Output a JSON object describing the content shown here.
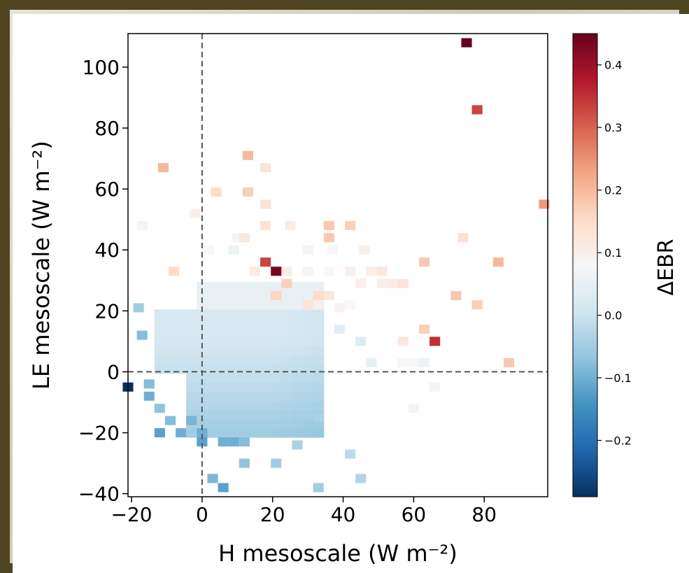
{
  "chart_data": {
    "type": "heatmap",
    "title": "",
    "xlabel": "H mesoscale (W m⁻²)",
    "ylabel": "LE mesoscale (W m⁻²)",
    "colorbar_label": "ΔEBR",
    "colormap": "RdBu_r",
    "xlim": [
      -21,
      98
    ],
    "ylim": [
      -41,
      111
    ],
    "x_ticks": [
      -20,
      0,
      20,
      40,
      60,
      80
    ],
    "x_tick_labels": [
      "−20",
      "0",
      "20",
      "40",
      "60",
      "80"
    ],
    "y_ticks": [
      -40,
      -20,
      0,
      20,
      40,
      60,
      80,
      100
    ],
    "y_tick_labels": [
      "−40",
      "−20",
      "0",
      "20",
      "40",
      "60",
      "80",
      "100"
    ],
    "colorbar_range": [
      -0.29,
      0.45
    ],
    "colorbar_ticks": [
      -0.2,
      -0.1,
      0.0,
      0.1,
      0.2,
      0.3,
      0.4
    ],
    "colorbar_tick_labels": [
      "−0.2",
      "−0.1",
      "0.0",
      "0.1",
      "0.2",
      "0.3",
      "0.4"
    ],
    "reference_lines": {
      "x": 0,
      "y": 0,
      "style": "dashed"
    },
    "bin_width": {
      "x": 3,
      "y": 3
    },
    "cells": [
      [
        75,
        108,
        0.45
      ],
      [
        78,
        86,
        0.33
      ],
      [
        97,
        55,
        0.24
      ],
      [
        -11,
        67,
        0.2
      ],
      [
        13,
        71,
        0.2
      ],
      [
        18,
        67,
        0.13
      ],
      [
        13,
        59,
        0.17
      ],
      [
        4,
        59,
        0.15
      ],
      [
        18,
        55,
        0.13
      ],
      [
        -2,
        52,
        0.1
      ],
      [
        -17,
        48,
        0.07
      ],
      [
        10,
        44,
        0.09
      ],
      [
        12,
        44,
        0.12
      ],
      [
        18,
        48,
        0.13
      ],
      [
        25,
        48,
        0.11
      ],
      [
        36,
        48,
        0.18
      ],
      [
        36,
        44,
        0.18
      ],
      [
        42,
        48,
        0.17
      ],
      [
        74,
        44,
        0.14
      ],
      [
        2,
        40,
        0.08
      ],
      [
        9,
        40,
        0.06
      ],
      [
        30,
        40,
        0.07
      ],
      [
        37,
        40,
        0.08
      ],
      [
        46,
        40,
        0.1
      ],
      [
        18,
        36,
        0.33
      ],
      [
        21,
        33,
        0.43
      ],
      [
        -8,
        33,
        0.15
      ],
      [
        15,
        33,
        0.11
      ],
      [
        24,
        33,
        0.11
      ],
      [
        30,
        33,
        0.09
      ],
      [
        36,
        33,
        0.08
      ],
      [
        42,
        33,
        0.1
      ],
      [
        48,
        33,
        0.1
      ],
      [
        51,
        33,
        0.12
      ],
      [
        63,
        36,
        0.18
      ],
      [
        84,
        36,
        0.2
      ],
      [
        24,
        29,
        0.17
      ],
      [
        21,
        25,
        0.16
      ],
      [
        33,
        25,
        0.15
      ],
      [
        36,
        25,
        0.12
      ],
      [
        45,
        29,
        0.1
      ],
      [
        51,
        29,
        0.1
      ],
      [
        54,
        29,
        0.11
      ],
      [
        57,
        29,
        0.13
      ],
      [
        72,
        25,
        0.18
      ],
      [
        78,
        22,
        0.17
      ],
      [
        30,
        22,
        0.13
      ],
      [
        33,
        22,
        0.1
      ],
      [
        39,
        21,
        0.09
      ],
      [
        42,
        22,
        0.08
      ],
      [
        63,
        14,
        0.17
      ],
      [
        66,
        10,
        0.35
      ],
      [
        57,
        10,
        0.12
      ],
      [
        87,
        3,
        0.18
      ],
      [
        -18,
        21,
        -0.05
      ],
      [
        -15,
        -4,
        -0.08
      ],
      [
        -15,
        -8,
        -0.1
      ],
      [
        -12,
        -12,
        -0.07
      ],
      [
        -9,
        -16,
        -0.08
      ],
      [
        -12,
        -20,
        -0.12
      ],
      [
        -6,
        -20,
        -0.1
      ],
      [
        -3,
        -16,
        -0.09
      ],
      [
        0,
        -20,
        -0.1
      ],
      [
        0,
        -23,
        -0.12
      ],
      [
        6,
        -23,
        -0.1
      ],
      [
        9,
        -23,
        -0.1
      ],
      [
        12,
        -23,
        -0.08
      ],
      [
        3,
        -35,
        -0.09
      ],
      [
        6,
        -38,
        -0.12
      ],
      [
        12,
        -30,
        -0.07
      ],
      [
        21,
        -30,
        -0.05
      ],
      [
        27,
        -24,
        -0.04
      ],
      [
        33,
        -15,
        -0.04
      ],
      [
        33,
        -38,
        -0.05
      ],
      [
        42,
        -27,
        -0.02
      ],
      [
        45,
        -35,
        -0.03
      ],
      [
        -21,
        -5,
        -0.29
      ],
      [
        -17,
        12,
        -0.08
      ],
      [
        60,
        -12,
        0.07
      ],
      [
        66,
        -5,
        0.07
      ],
      [
        57,
        3,
        0.08
      ],
      [
        60,
        3,
        0.08
      ],
      [
        63,
        3,
        0.06
      ],
      [
        48,
        3,
        0.05
      ],
      [
        45,
        10,
        0.03
      ],
      [
        39,
        14,
        0.04
      ]
    ]
  }
}
